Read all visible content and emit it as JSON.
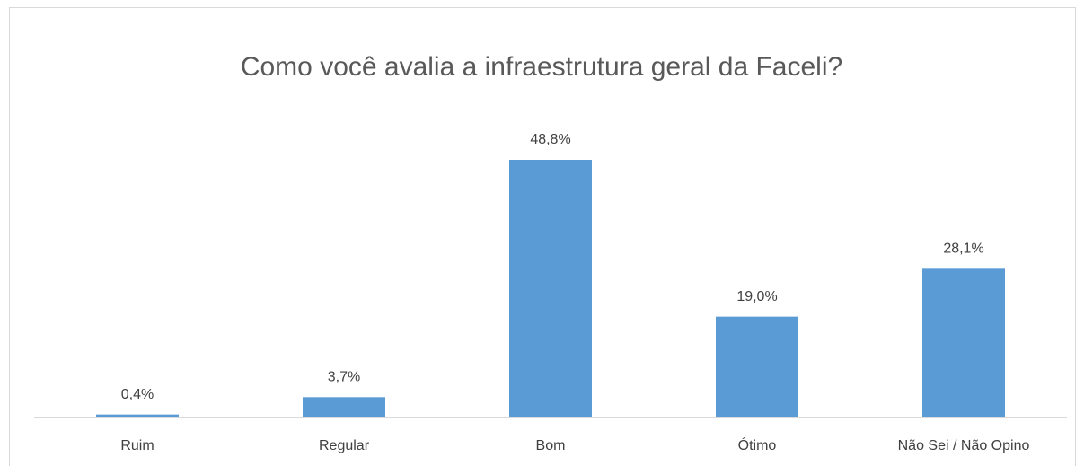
{
  "chart_data": {
    "type": "bar",
    "title": "Como você avalia a infraestrutura geral da Faceli?",
    "categories": [
      "Ruim",
      "Regular",
      "Bom",
      "Ótimo",
      "Não Sei / Não Opino"
    ],
    "values": [
      0.4,
      3.7,
      48.8,
      19.0,
      28.1
    ],
    "value_labels": [
      "0,4%",
      "3,7%",
      "48,8%",
      "19,0%",
      "28,1%"
    ],
    "color": "#5b9bd5"
  }
}
